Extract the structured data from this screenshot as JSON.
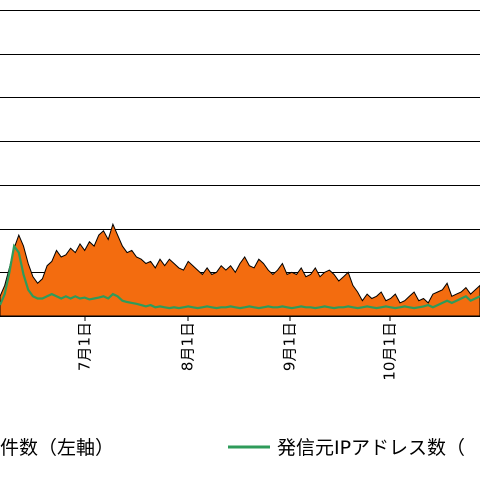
{
  "chart_data": {
    "type": "area",
    "x_tick_labels": [
      "7月1日",
      "8月1日",
      "9月1日",
      "10月1日"
    ],
    "grid": true,
    "ylim": [
      0,
      7
    ],
    "y_gridlines": [
      1,
      2,
      3,
      4,
      5,
      6,
      7
    ],
    "series": [
      {
        "name": "観測件数（左軸）",
        "type": "area",
        "color": "#f36c0f",
        "y": [
          0.45,
          0.7,
          1.1,
          1.55,
          1.85,
          1.6,
          1.2,
          0.9,
          0.75,
          0.85,
          1.15,
          1.25,
          1.5,
          1.35,
          1.4,
          1.55,
          1.45,
          1.65,
          1.5,
          1.7,
          1.6,
          1.85,
          1.95,
          1.75,
          2.1,
          1.85,
          1.6,
          1.45,
          1.5,
          1.35,
          1.3,
          1.2,
          1.25,
          1.1,
          1.3,
          1.15,
          1.3,
          1.2,
          1.1,
          1.05,
          1.25,
          1.15,
          1.05,
          0.95,
          1.1,
          0.95,
          1.0,
          1.15,
          1.05,
          1.15,
          1.0,
          1.2,
          1.35,
          1.15,
          1.1,
          1.3,
          1.2,
          1.05,
          0.95,
          1.05,
          1.2,
          0.95,
          1.0,
          0.95,
          1.1,
          0.9,
          0.95,
          1.1,
          0.9,
          1.0,
          1.05,
          0.95,
          0.8,
          0.9,
          1.0,
          0.7,
          0.55,
          0.35,
          0.5,
          0.4,
          0.45,
          0.55,
          0.35,
          0.4,
          0.5,
          0.3,
          0.35,
          0.45,
          0.55,
          0.35,
          0.4,
          0.3,
          0.5,
          0.55,
          0.6,
          0.75,
          0.45,
          0.5,
          0.55,
          0.65,
          0.5,
          0.6,
          0.7
        ]
      },
      {
        "name": "発信元IPアドレス数（右軸）",
        "type": "line",
        "color": "#2e9b5a",
        "y": [
          0.25,
          0.5,
          1.0,
          1.6,
          1.45,
          0.95,
          0.6,
          0.45,
          0.4,
          0.4,
          0.45,
          0.5,
          0.45,
          0.4,
          0.45,
          0.4,
          0.45,
          0.4,
          0.42,
          0.38,
          0.4,
          0.42,
          0.45,
          0.4,
          0.5,
          0.45,
          0.35,
          0.32,
          0.3,
          0.28,
          0.25,
          0.22,
          0.25,
          0.2,
          0.22,
          0.2,
          0.18,
          0.2,
          0.18,
          0.2,
          0.22,
          0.2,
          0.18,
          0.2,
          0.22,
          0.2,
          0.18,
          0.2,
          0.2,
          0.22,
          0.2,
          0.18,
          0.2,
          0.22,
          0.2,
          0.18,
          0.2,
          0.22,
          0.2,
          0.2,
          0.22,
          0.2,
          0.18,
          0.2,
          0.22,
          0.2,
          0.2,
          0.18,
          0.2,
          0.22,
          0.2,
          0.18,
          0.2,
          0.2,
          0.22,
          0.2,
          0.18,
          0.2,
          0.22,
          0.2,
          0.18,
          0.2,
          0.22,
          0.2,
          0.18,
          0.2,
          0.22,
          0.2,
          0.18,
          0.2,
          0.22,
          0.25,
          0.2,
          0.25,
          0.3,
          0.35,
          0.3,
          0.35,
          0.4,
          0.45,
          0.35,
          0.4,
          0.45
        ]
      }
    ],
    "legend": [
      {
        "label": "観測件数（左軸）",
        "marker": "area",
        "color": "#f36c0f"
      },
      {
        "label": "発信元IPアドレス数（",
        "marker": "line",
        "color": "#2e9b5a"
      }
    ],
    "legend_position": "bottom"
  }
}
